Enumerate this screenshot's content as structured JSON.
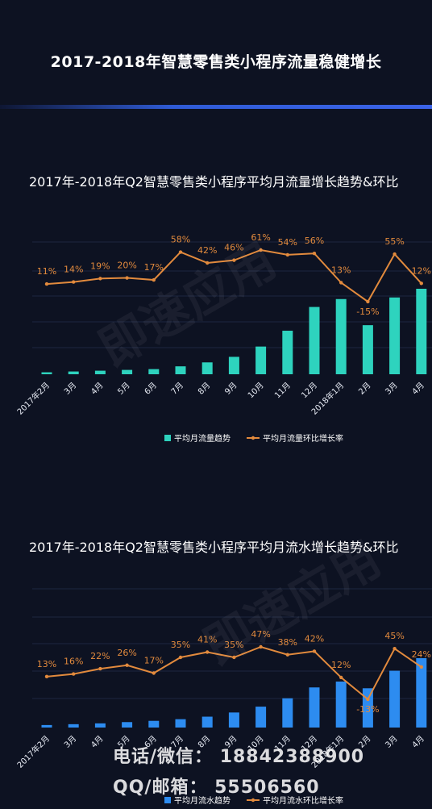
{
  "page": {
    "title": "2017-2018年智慧零售类小程序流量稳健增长"
  },
  "watermark": "即速应用",
  "contact": {
    "line1": "电话/微信： 18842388900",
    "line2": "QQ/邮箱： 55506560"
  },
  "colors": {
    "background": "#0d1222",
    "teal": "#2ed3be",
    "blue": "#2d8cf0",
    "orange": "#e28a3d"
  },
  "chart_data": [
    {
      "type": "bar",
      "title": "2017年-2018年Q2智慧零售类小程序平均月流量增长趋势&环比",
      "categories": [
        "2017年2月",
        "3月",
        "4月",
        "5月",
        "6月",
        "7月",
        "8月",
        "9月",
        "10月",
        "11月",
        "12月",
        "2018年1月",
        "2月",
        "3月",
        "4月"
      ],
      "series": [
        {
          "name": "平均月流量趋势",
          "type": "bar",
          "color": "#2ed3be",
          "values": [
            2.5,
            3.5,
            4.5,
            5.5,
            6.5,
            10,
            15,
            22,
            35,
            55,
            85,
            95,
            62,
            97,
            108
          ]
        },
        {
          "name": "平均月流量环比增长率",
          "type": "line",
          "color": "#e28a3d",
          "values": [
            11,
            14,
            19,
            20,
            17,
            58,
            42,
            46,
            61,
            54,
            56,
            13,
            -15,
            55,
            12
          ],
          "labels": [
            "11%",
            "14%",
            "19%",
            "20%",
            "17%",
            "58%",
            "42%",
            "46%",
            "61%",
            "54%",
            "56%",
            "13%",
            "-15%",
            "55%",
            "12%"
          ]
        }
      ],
      "legend": "bottom-center"
    },
    {
      "type": "bar",
      "title": "2017年-2018年Q2智慧零售类小程序平均月流水增长趋势&环比",
      "categories": [
        "2017年2月",
        "3月",
        "4月",
        "5月",
        "6月",
        "7月",
        "8月",
        "9月",
        "10月",
        "11月",
        "12月",
        "2018年1月",
        "2月",
        "3月",
        "4月"
      ],
      "series": [
        {
          "name": "平均月流水趋势",
          "type": "bar",
          "color": "#2d8cf0",
          "values": [
            3,
            4,
            5,
            6.5,
            8,
            10,
            13,
            18,
            25,
            35,
            48,
            55,
            47,
            68,
            83
          ]
        },
        {
          "name": "平均月流水环比增长率",
          "type": "line",
          "color": "#e28a3d",
          "values": [
            13,
            16,
            22,
            26,
            17,
            35,
            41,
            35,
            47,
            38,
            42,
            12,
            -13,
            45,
            24
          ],
          "labels": [
            "13%",
            "16%",
            "22%",
            "26%",
            "17%",
            "35%",
            "41%",
            "35%",
            "47%",
            "38%",
            "42%",
            "12%",
            "-13%",
            "45%",
            "24%"
          ]
        }
      ],
      "legend": "bottom-center"
    }
  ]
}
